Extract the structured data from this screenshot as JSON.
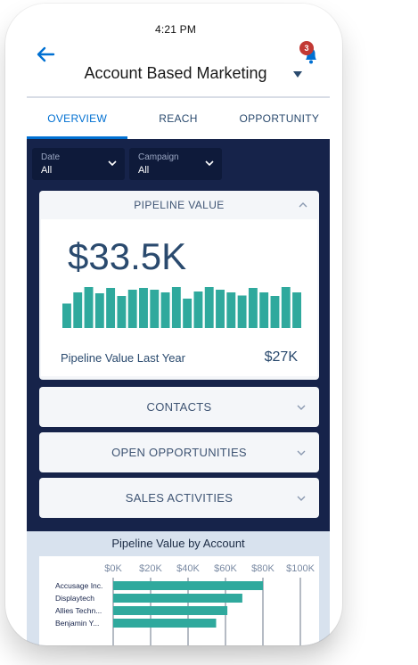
{
  "status_bar": {
    "time": "4:21 PM"
  },
  "header": {
    "title": "Account Based Marketing",
    "notification_count": "3",
    "icons": {
      "back": "arrow-left-icon",
      "bell": "bell-icon",
      "caret": "caret-down-icon"
    }
  },
  "tabs": [
    {
      "label": "OVERVIEW",
      "active": true
    },
    {
      "label": "REACH",
      "active": false
    },
    {
      "label": "OPPORTUNITY",
      "active": false
    }
  ],
  "filters": [
    {
      "label": "Date",
      "value": "All"
    },
    {
      "label": "Campaign",
      "value": "All"
    }
  ],
  "pipeline_card": {
    "title": "PIPELINE VALUE",
    "value": "$33.5K",
    "last_year_label": "Pipeline Value Last Year",
    "last_year_value": "$27K",
    "bar_levels": [
      0.55,
      0.8,
      0.92,
      0.78,
      0.9,
      0.72,
      0.86,
      0.9,
      0.86,
      0.8,
      0.92,
      0.66,
      0.82,
      0.92,
      0.86,
      0.8,
      0.73,
      0.9,
      0.8,
      0.72,
      0.92,
      0.8
    ]
  },
  "collapsed_cards": [
    {
      "title": "CONTACTS"
    },
    {
      "title": "OPEN OPPORTUNITIES"
    },
    {
      "title": "SALES ACTIVITIES"
    }
  ],
  "colors": {
    "accent": "#0070d2",
    "dashboard_bg": "#16234a",
    "bar_teal": "#2fa99d",
    "badge_red": "#c23934",
    "text_navy": "#2a4a6e"
  },
  "chart_data": {
    "type": "bar",
    "orientation": "horizontal",
    "title": "Pipeline Value by Account",
    "x_ticks": [
      "$0K",
      "$20K",
      "$40K",
      "$60K",
      "$80K",
      "$100K"
    ],
    "xlim": [
      0,
      100000
    ],
    "categories": [
      "Accusage Inc.",
      "Displaytech",
      "Allies Techn...",
      "Benjamin Y..."
    ],
    "values": [
      80000,
      69000,
      61000,
      55000
    ]
  }
}
